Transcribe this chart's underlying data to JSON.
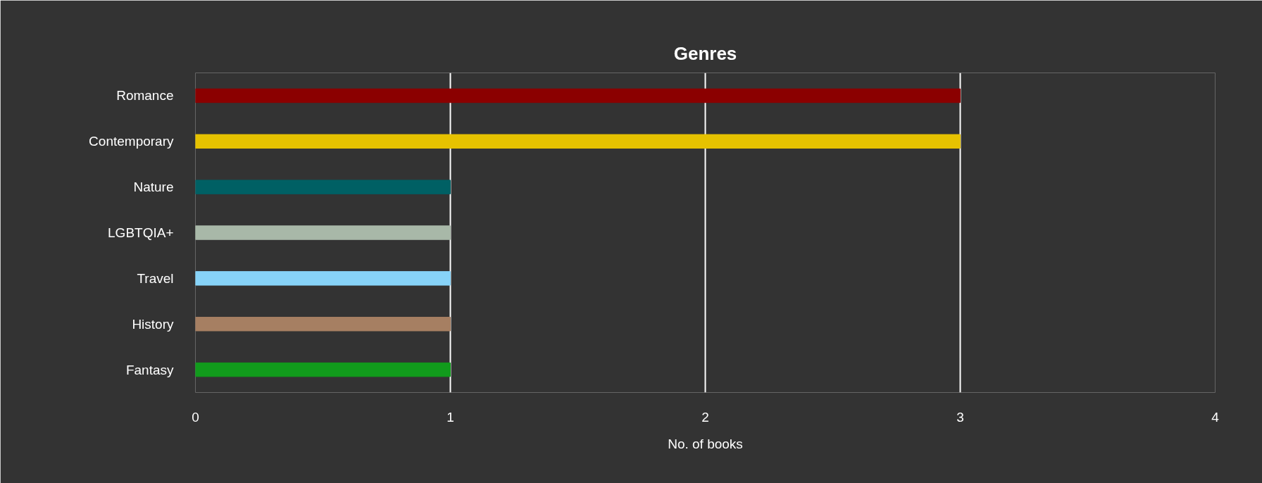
{
  "chart_data": {
    "type": "bar",
    "orientation": "horizontal",
    "title": "Genres",
    "xlabel": "No. of books",
    "categories": [
      "Romance",
      "Contemporary",
      "Nature",
      "LGBTQIA+",
      "Travel",
      "History",
      "Fantasy"
    ],
    "values": [
      3,
      3,
      1,
      1,
      1,
      1,
      1
    ],
    "colors": [
      "#8b0000",
      "#e6c200",
      "#006064",
      "#a8b8a8",
      "#87d3f8",
      "#a67f62",
      "#119b1c"
    ],
    "xlim": [
      0,
      4
    ],
    "xticks": [
      0,
      1,
      2,
      3,
      4
    ],
    "grid": "x"
  }
}
